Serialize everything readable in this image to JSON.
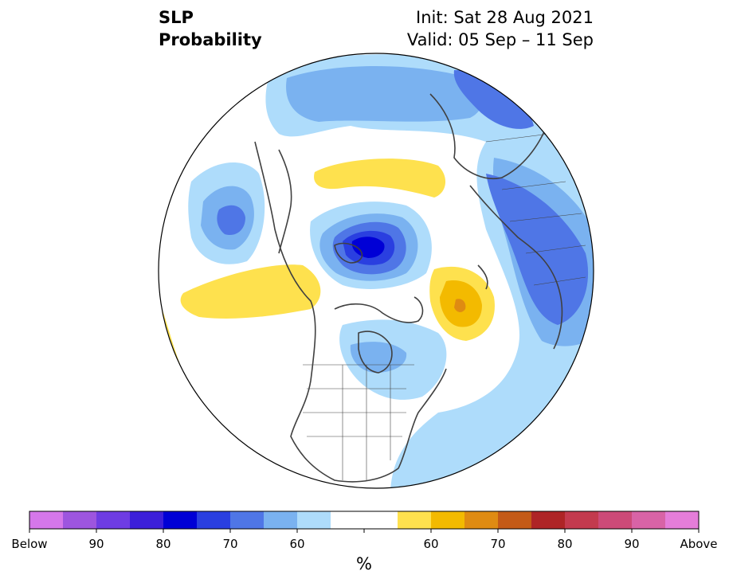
{
  "title": {
    "line1": "SLP",
    "line2": "Probability"
  },
  "init_label": "Init: Sat 28 Aug 2021",
  "valid_label": "Valid: 05 Sep – 11 Sep",
  "colorbar": {
    "unit": "%",
    "colors": [
      "#d577ea",
      "#9d55df",
      "#6e3ce3",
      "#3c1fd9",
      "#0000d6",
      "#2a3fe0",
      "#4f76e6",
      "#7ab2f0",
      "#aedcfb",
      "#ffffff",
      "#ffffff",
      "#fee14e",
      "#f3ba00",
      "#df8b12",
      "#c45a17",
      "#ae2426",
      "#c33a4e",
      "#cc4a78",
      "#d863a6",
      "#e57dd9"
    ],
    "tick_labels": [
      "Below",
      "90",
      "80",
      "70",
      "60",
      "60",
      "70",
      "80",
      "90",
      "Above"
    ]
  },
  "map": {
    "projection": "north-polar-stereographic",
    "colors": {
      "white": "#ffffff",
      "lightblue": "#aedcfb",
      "blue1": "#7ab2f0",
      "blue2": "#4f76e6",
      "blue3": "#2a3fe0",
      "blue4": "#0000d6",
      "yellow": "#fee14e",
      "orange": "#f3ba00",
      "darkorange": "#df8b12"
    }
  }
}
